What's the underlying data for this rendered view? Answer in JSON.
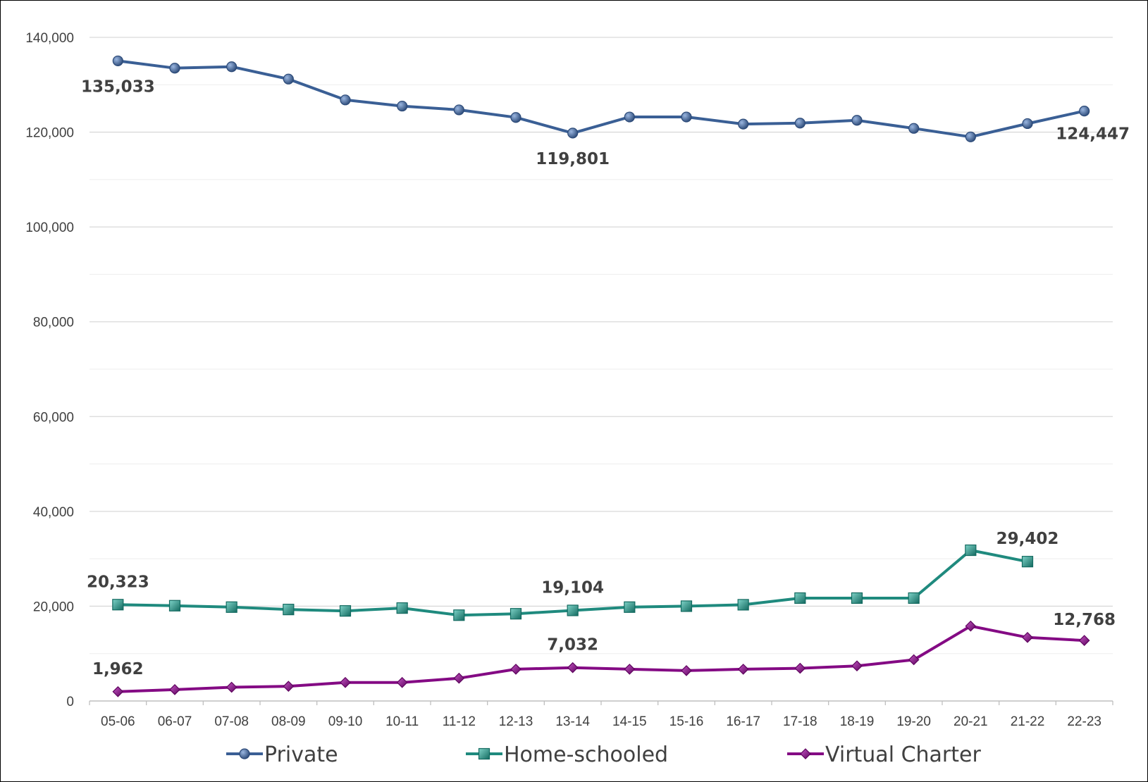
{
  "chart_data": {
    "type": "line",
    "categories": [
      "05-06",
      "06-07",
      "07-08",
      "08-09",
      "09-10",
      "10-11",
      "11-12",
      "12-13",
      "13-14",
      "14-15",
      "15-16",
      "16-17",
      "17-18",
      "18-19",
      "19-20",
      "20-21",
      "21-22",
      "22-23"
    ],
    "ylim": [
      0,
      140000
    ],
    "yticks": [
      0,
      20000,
      40000,
      60000,
      80000,
      100000,
      120000,
      140000
    ],
    "ytick_labels": [
      "0",
      "20,000",
      "40,000",
      "60,000",
      "80,000",
      "100,000",
      "120,000",
      "140,000"
    ],
    "grid": true,
    "legend_position": "bottom",
    "series": [
      {
        "name": "Private",
        "color": "#3a5f95",
        "marker": "circle",
        "values": [
          135033,
          133500,
          133800,
          131200,
          126800,
          125500,
          124700,
          123100,
          119801,
          123200,
          123200,
          121700,
          121900,
          122500,
          120800,
          119000,
          121800,
          124447
        ]
      },
      {
        "name": "Home-schooled",
        "color": "#1f8a7e",
        "marker": "square",
        "values": [
          20323,
          20100,
          19800,
          19300,
          19000,
          19600,
          18100,
          18400,
          19104,
          19800,
          20000,
          20300,
          21700,
          21700,
          21700,
          31800,
          29402,
          null
        ]
      },
      {
        "name": "Virtual Charter",
        "color": "#840a84",
        "marker": "diamond",
        "values": [
          1962,
          2400,
          2900,
          3100,
          3900,
          3900,
          4800,
          6700,
          7032,
          6700,
          6400,
          6700,
          6900,
          7400,
          8700,
          15800,
          13400,
          12768
        ]
      }
    ],
    "data_labels": [
      {
        "series": 0,
        "index": 0,
        "text": "135,033"
      },
      {
        "series": 0,
        "index": 8,
        "text": "119,801"
      },
      {
        "series": 0,
        "index": 17,
        "text": "124,447"
      },
      {
        "series": 1,
        "index": 0,
        "text": "20,323"
      },
      {
        "series": 1,
        "index": 8,
        "text": "19,104"
      },
      {
        "series": 1,
        "index": 16,
        "text": "29,402"
      },
      {
        "series": 2,
        "index": 0,
        "text": "1,962"
      },
      {
        "series": 2,
        "index": 8,
        "text": "7,032"
      },
      {
        "series": 2,
        "index": 17,
        "text": "12,768"
      }
    ]
  }
}
